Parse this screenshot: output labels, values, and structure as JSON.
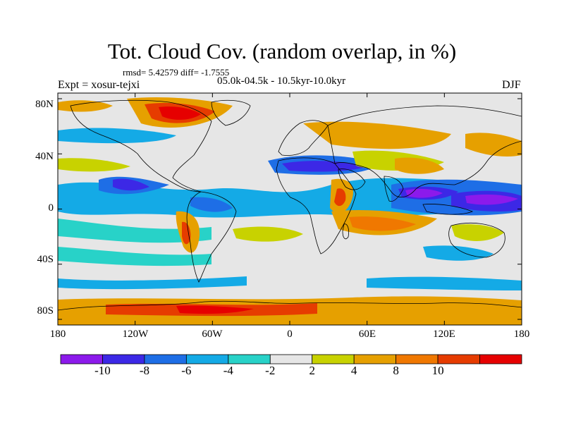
{
  "title": "Tot. Cloud Cov. (random overlap, in %)",
  "stats": "rmsd= 5.42579 diff= -1.7555",
  "period": "05.0k-04.5k - 10.5kyr-10.0kyr",
  "experiment": "Expt = xosur-tejxi",
  "season": "DJF",
  "map": {
    "lat_ticks": [
      "80N",
      "40N",
      "0",
      "40S",
      "80S"
    ],
    "lon_ticks": [
      "180",
      "120W",
      "60W",
      "0",
      "60E",
      "120E",
      "180"
    ],
    "background_color": "#e6e6e6"
  },
  "colorbar": {
    "labels": [
      "-10",
      "-8",
      "-6",
      "-4",
      "-2",
      "2",
      "4",
      "8",
      "10"
    ],
    "colors": [
      "#8c1aeb",
      "#3c28e6",
      "#1e6ee6",
      "#14aae6",
      "#28d2c8",
      "#e6e6e6",
      "#c8d200",
      "#e6a000",
      "#f07800",
      "#e63c00",
      "#e60000"
    ]
  }
}
